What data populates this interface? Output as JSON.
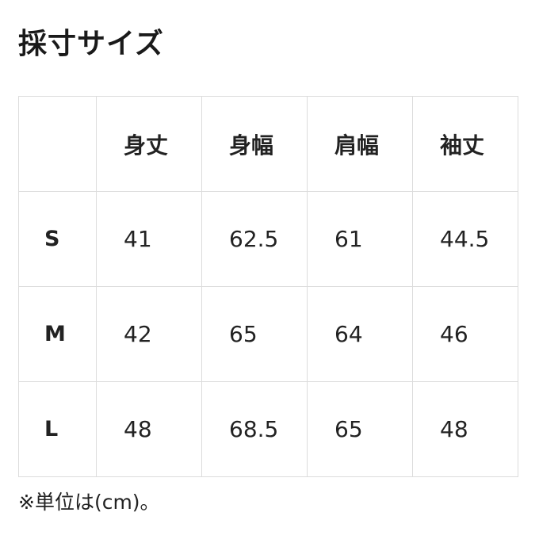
{
  "title": "採寸サイズ",
  "table": {
    "headers": [
      "",
      "身丈",
      "身幅",
      "肩幅",
      "袖丈"
    ],
    "rows": [
      {
        "size": "S",
        "values": [
          "41",
          "62.5",
          "61",
          "44.5"
        ]
      },
      {
        "size": "M",
        "values": [
          "42",
          "65",
          "64",
          "46"
        ]
      },
      {
        "size": "L",
        "values": [
          "48",
          "68.5",
          "65",
          "48"
        ]
      }
    ]
  },
  "note": "※単位は(cm)。"
}
